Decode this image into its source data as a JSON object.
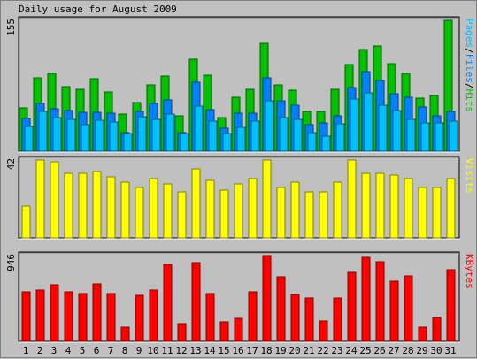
{
  "chart_data": [
    {
      "type": "bar",
      "title": "Daily usage for August 2009",
      "categories": [
        "1",
        "2",
        "3",
        "4",
        "5",
        "6",
        "7",
        "8",
        "9",
        "10",
        "11",
        "12",
        "13",
        "14",
        "15",
        "16",
        "17",
        "18",
        "19",
        "20",
        "21",
        "22",
        "23",
        "24",
        "25",
        "26",
        "27",
        "28",
        "29",
        "30",
        "31"
      ],
      "weekend_days": [
        "1",
        "2",
        "8",
        "9",
        "15",
        "16",
        "22",
        "23",
        "29",
        "30"
      ],
      "ymax_label": "155",
      "ylabel_parts": [
        "Pages",
        "/",
        "Files",
        "/",
        "Hits"
      ],
      "series": [
        {
          "name": "Hits",
          "color": "#00c000",
          "values": [
            49,
            82,
            87,
            73,
            70,
            81,
            67,
            42,
            55,
            74,
            84,
            40,
            103,
            85,
            38,
            61,
            70,
            121,
            74,
            69,
            45,
            45,
            70,
            97,
            114,
            118,
            98,
            87,
            60,
            63,
            147
          ]
        },
        {
          "name": "Files",
          "color": "#0080ff",
          "values": [
            37,
            54,
            48,
            46,
            44,
            44,
            43,
            21,
            45,
            54,
            58,
            21,
            77,
            47,
            26,
            43,
            43,
            82,
            57,
            52,
            30,
            32,
            40,
            72,
            89,
            79,
            65,
            61,
            50,
            40,
            45
          ]
        },
        {
          "name": "Pages",
          "color": "#00c0ff",
          "values": [
            28,
            45,
            38,
            36,
            30,
            35,
            33,
            20,
            39,
            36,
            42,
            20,
            51,
            34,
            20,
            27,
            34,
            57,
            38,
            36,
            21,
            17,
            31,
            59,
            66,
            52,
            46,
            36,
            32,
            32,
            34
          ]
        }
      ]
    },
    {
      "type": "bar",
      "ymax_label": "42",
      "ylabel_parts": [
        "Visits"
      ],
      "series": [
        {
          "name": "Visits",
          "color": "#ffff00",
          "values": [
            17,
            42,
            41,
            35,
            35,
            36,
            33,
            30,
            27,
            32,
            29,
            25,
            37,
            31,
            26,
            29,
            32,
            42,
            27,
            30,
            25,
            25,
            30,
            42,
            35,
            35,
            34,
            32,
            27,
            27,
            32
          ]
        }
      ]
    },
    {
      "type": "bar",
      "ymax_label": "946",
      "ylabel_parts": [
        "KBytes"
      ],
      "series": [
        {
          "name": "KBytes",
          "color": "#ff0000",
          "values": [
            544,
            566,
            622,
            548,
            522,
            630,
            526,
            160,
            510,
            566,
            852,
            194,
            864,
            526,
            218,
            254,
            548,
            946,
            714,
            514,
            478,
            220,
            476,
            762,
            926,
            874,
            662,
            718,
            160,
            264,
            790
          ]
        }
      ]
    }
  ]
}
